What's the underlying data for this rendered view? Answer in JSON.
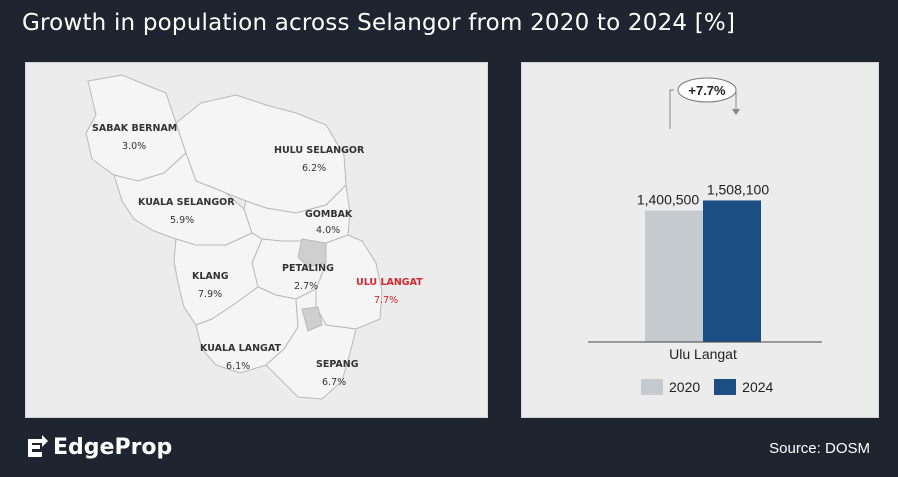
{
  "title": "Growth in population across Selangor from 2020 to 2024 [%]",
  "source": "Source: DOSM",
  "logo": {
    "text": "EdgeProp"
  },
  "map": {
    "regions": [
      {
        "name": "SABAK BERNAM",
        "value": "3.0%",
        "highlight": false
      },
      {
        "name": "HULU SELANGOR",
        "value": "6.2%",
        "highlight": false
      },
      {
        "name": "KUALA SELANGOR",
        "value": "5.9%",
        "highlight": false
      },
      {
        "name": "GOMBAK",
        "value": "4.0%",
        "highlight": false
      },
      {
        "name": "PETALING",
        "value": "2.7%",
        "highlight": false
      },
      {
        "name": "KLANG",
        "value": "7.9%",
        "highlight": false
      },
      {
        "name": "ULU LANGAT",
        "value": "7.7%",
        "highlight": true
      },
      {
        "name": "KUALA LANGAT",
        "value": "6.1%",
        "highlight": false
      },
      {
        "name": "SEPANG",
        "value": "6.7%",
        "highlight": false
      }
    ],
    "highlight_color": "#d9262c"
  },
  "chart_data": {
    "type": "bar",
    "categories": [
      "Ulu Langat"
    ],
    "series": [
      {
        "name": "2020",
        "values": [
          1400500
        ],
        "color": "#c5cacf"
      },
      {
        "name": "2024",
        "values": [
          1508100
        ],
        "color": "#1b4f84"
      }
    ],
    "data_labels": [
      "1,400,500",
      "1,508,100"
    ],
    "annotation": "+7.7%",
    "title": "",
    "xlabel": "",
    "ylabel": "",
    "ylim": [
      0,
      1700000
    ],
    "grid": false,
    "legend_position": "bottom"
  }
}
